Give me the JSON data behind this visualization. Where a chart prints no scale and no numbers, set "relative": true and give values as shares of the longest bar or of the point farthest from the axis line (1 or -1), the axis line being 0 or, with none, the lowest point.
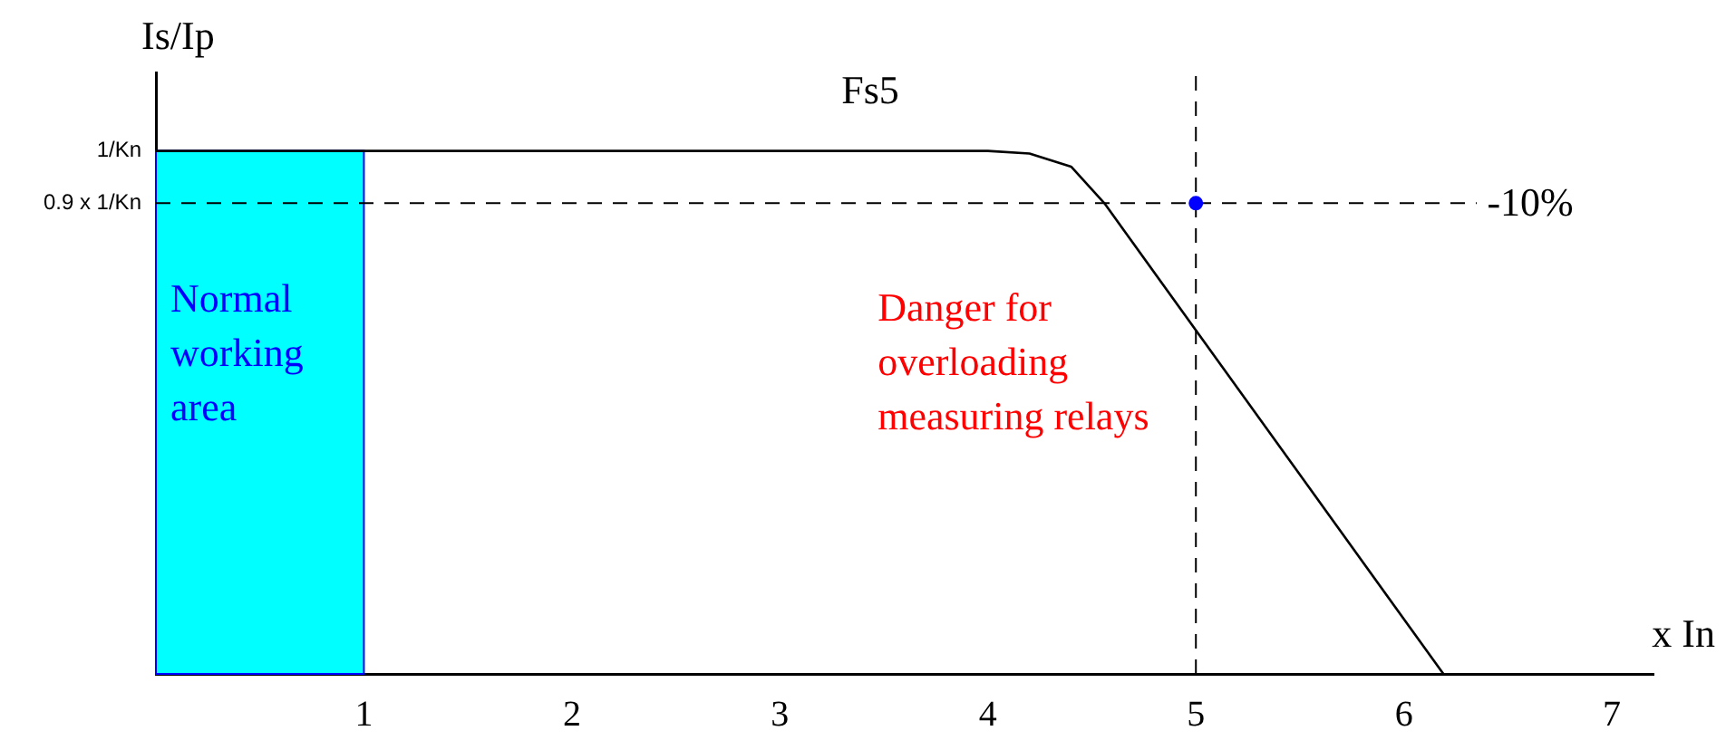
{
  "chart_data": {
    "type": "line",
    "title": "Fs5",
    "xlabel": "x In",
    "ylabel": "Is/Ip",
    "xlim": [
      0,
      7.2
    ],
    "xticks": [
      1,
      2,
      3,
      4,
      5,
      6,
      7
    ],
    "relative": true,
    "series": [
      {
        "type": "line",
        "color": "#000000",
        "x": [
          0,
          4,
          4.2,
          4.4,
          4.56,
          6.19
        ],
        "values": [
          1,
          1,
          0.995,
          0.97,
          0.9,
          0
        ]
      },
      {
        "type": "scatter",
        "color": "#0000ff",
        "x": [
          5
        ],
        "values": [
          0.9
        ]
      }
    ],
    "ref_lines": [
      {
        "axis": "y",
        "value": 0.9,
        "label": "0.9 x 1/Kn",
        "color": "#000000",
        "line_style": "dashed"
      },
      {
        "axis": "x",
        "value": 5,
        "label": null,
        "color": "#000000",
        "line_style": "dashed"
      }
    ],
    "bands": [
      {
        "axis": "x",
        "from": 0,
        "to": 1,
        "label": "Normal working area",
        "color": "#00ffff"
      }
    ],
    "annotations": [
      "Danger for overloading measuring relays",
      "1/Kn",
      "-10%"
    ],
    "grid": false,
    "legend": false,
    "line_style": "solid"
  }
}
